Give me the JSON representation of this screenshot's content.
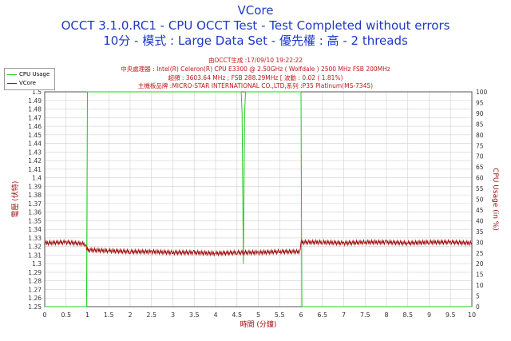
{
  "header": {
    "title": "VCore",
    "subtitle": "OCCT 3.1.0.RC1 - CPU OCCT Test - Test Completed without errors",
    "subtitle2": "10分 - 模式 : Large Data Set - 優先權 : 高 - 2 threads"
  },
  "info": {
    "generated": "由OCCT生成 :17/09/10 19:22:22",
    "cpu": "中央處理器 : Intel(R) Celeron(R) CPU E3300 @ 2.50GHz ( Wolfdale ) 2500 MHz FSB 200MHz",
    "overclock": "超頻 : 3603.64 MHz ; FSB 288.29MHz [ 波動 : 0.02 ( 1.81%)",
    "motherboard": "主機板品牌 :MICRO-STAR INTERNATIONAL CO.,LTD,系列 :P35 Platinum(MS-7345)"
  },
  "colors": {
    "title": "#1f39c8",
    "info": "#c01818",
    "cpu_usage": "#22cc22",
    "vcore": "#a01010",
    "grid": "#d0d0d0",
    "axis_labels": "#a01010"
  },
  "chart_data": {
    "type": "line",
    "title": "VCore",
    "xlabel": "時間 (分鐘)",
    "ylabel": "電壓 (伏特)",
    "y2label": "CPU Usage (in %)",
    "xlim": [
      0,
      10
    ],
    "ylim": [
      1.25,
      1.5
    ],
    "y2lim": [
      0,
      100
    ],
    "x_ticks": [
      "0",
      "0.5",
      "1",
      "1.5",
      "2",
      "2.5",
      "3",
      "3.5",
      "4",
      "4.5",
      "5",
      "5.5",
      "6",
      "6.5",
      "7",
      "7.5",
      "8",
      "8.5",
      "9",
      "9.5",
      "10"
    ],
    "y_ticks": [
      "1.25",
      "1.26",
      "1.27",
      "1.28",
      "1.29",
      "1.3",
      "1.31",
      "1.32",
      "1.33",
      "1.34",
      "1.35",
      "1.36",
      "1.37",
      "1.38",
      "1.39",
      "1.4",
      "1.41",
      "1.42",
      "1.43",
      "1.44",
      "1.45",
      "1.46",
      "1.47",
      "1.48",
      "1.49",
      "1.5"
    ],
    "y2_ticks": [
      "0",
      "5",
      "10",
      "15",
      "20",
      "25",
      "30",
      "35",
      "40",
      "45",
      "50",
      "55",
      "60",
      "65",
      "70",
      "75",
      "80",
      "85",
      "90",
      "95",
      "100"
    ],
    "grid": true,
    "legend_position": "top-left",
    "series": [
      {
        "name": "CPU Usage",
        "axis": "right",
        "x": [
          0,
          0.98,
          1.0,
          1.02,
          4.6,
          4.62,
          4.65,
          4.68,
          4.7,
          6.0,
          6.02,
          6.04,
          10
        ],
        "values": [
          0,
          0,
          100,
          100,
          100,
          90,
          20,
          90,
          100,
          100,
          0,
          0,
          0
        ]
      },
      {
        "name": "VCore",
        "axis": "left",
        "x": [
          0,
          0.5,
          0.95,
          1.0,
          1.5,
          2.0,
          2.5,
          3.0,
          3.5,
          4.0,
          4.5,
          5.0,
          5.5,
          5.98,
          6.0,
          6.5,
          7.0,
          7.5,
          8.0,
          8.5,
          9.0,
          9.5,
          10
        ],
        "values": [
          1.324,
          1.325,
          1.323,
          1.316,
          1.315,
          1.314,
          1.314,
          1.313,
          1.313,
          1.312,
          1.313,
          1.313,
          1.314,
          1.314,
          1.325,
          1.325,
          1.324,
          1.325,
          1.325,
          1.324,
          1.325,
          1.325,
          1.324
        ]
      }
    ]
  }
}
